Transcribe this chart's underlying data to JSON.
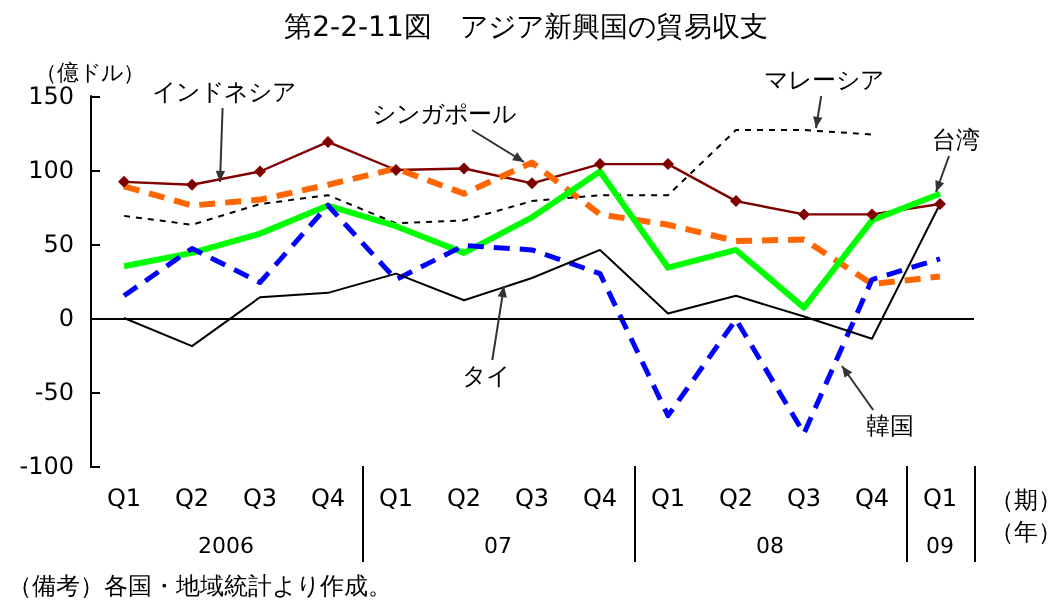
{
  "chart_data": {
    "type": "line",
    "title": "第2-2-11図　アジア新興国の貿易収支",
    "ylabel": "（億ドル）",
    "xlabel": "（期）",
    "categories": [
      "Q1",
      "Q2",
      "Q3",
      "Q4",
      "Q1",
      "Q2",
      "Q3",
      "Q4",
      "Q1",
      "Q2",
      "Q3",
      "Q4",
      "Q1"
    ],
    "series": [
      {
        "name": "インドネシア",
        "color": "#800000",
        "marker": "diamond",
        "line_style": "solid",
        "values": [
          92,
          90,
          99,
          119,
          100,
          101,
          91,
          104,
          104,
          79,
          70,
          70,
          77
        ]
      },
      {
        "name": "シンガポール",
        "color": "#ff6600",
        "marker": "none",
        "line_style": "dashed",
        "values": [
          89,
          76,
          80,
          90,
          101,
          84,
          105,
          70,
          63,
          52,
          53,
          23,
          28
        ]
      },
      {
        "name": "マレーシア",
        "color": "#000000",
        "marker": "none",
        "line_style": "dotted",
        "values": [
          69,
          63,
          77,
          83,
          64,
          66,
          79,
          83,
          83,
          127,
          127,
          124,
          null
        ]
      },
      {
        "name": "台湾",
        "color": "#00ff00",
        "marker": "none",
        "line_style": "solid",
        "values": [
          35,
          44,
          57,
          76,
          62,
          44,
          68,
          99,
          34,
          46,
          7,
          66,
          84
        ]
      },
      {
        "name": "韓国",
        "color": "#0000ff",
        "marker": "none",
        "line_style": "dashed",
        "values": [
          15,
          47,
          24,
          76,
          26,
          49,
          46,
          30,
          -66,
          -1,
          -78,
          26,
          40
        ]
      },
      {
        "name": "タイ",
        "color": "#000000",
        "marker": "none",
        "line_style": "solid",
        "values": [
          0,
          -19,
          14,
          17,
          30,
          12,
          27,
          46,
          3,
          15,
          1,
          -14,
          77
        ]
      }
    ],
    "ylim": [
      -100,
      150
    ],
    "yticks": [
      -100,
      -50,
      0,
      50,
      100,
      150
    ],
    "grid": false,
    "legend": false,
    "ref_lines": [
      {
        "axis": "y",
        "value": 0,
        "color": "#000000"
      }
    ],
    "annotations": [
      "2006",
      "07",
      "08",
      "09",
      "（年）",
      "（備考）各国・地域統計より作成。"
    ]
  }
}
